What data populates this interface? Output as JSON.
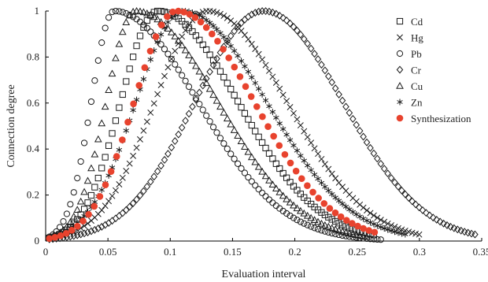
{
  "chart_data": {
    "type": "scatter",
    "title": "",
    "xlabel": "Evaluation interval",
    "ylabel": "Connection degree",
    "xlim": [
      0,
      0.35
    ],
    "ylim": [
      0,
      1
    ],
    "xticks": [
      "0",
      "0.05",
      "0.1",
      "0.15",
      "0.2",
      "0.25",
      "0.3",
      "0.35"
    ],
    "yticks": [
      "0",
      "0.2",
      "0.4",
      "0.6",
      "0.8",
      "1"
    ],
    "grid": false,
    "legend_position": "right",
    "colors": {
      "black": "#1a1a1a",
      "synthesization": "#e8432e"
    },
    "series": [
      {
        "name": "Cd",
        "marker": "square",
        "color": "#1a1a1a",
        "peak": 0.09,
        "left_width": 0.042,
        "right_width": 0.091,
        "end": 0.265,
        "x": [
          0.003,
          0.013,
          0.023,
          0.033,
          0.043,
          0.053,
          0.063,
          0.073,
          0.083,
          0.09,
          0.1,
          0.11,
          0.12,
          0.13,
          0.14,
          0.15,
          0.16,
          0.17,
          0.18,
          0.19,
          0.2,
          0.21,
          0.22,
          0.23,
          0.24,
          0.25,
          0.26
        ],
        "y": [
          0.02,
          0.08,
          0.22,
          0.45,
          0.7,
          0.89,
          0.98,
          1,
          1,
          1,
          0.99,
          0.97,
          0.93,
          0.87,
          0.8,
          0.72,
          0.63,
          0.54,
          0.45,
          0.36,
          0.28,
          0.21,
          0.15,
          0.1,
          0.06,
          0.04,
          0.03
        ]
      },
      {
        "name": "Hg",
        "marker": "x",
        "color": "#1a1a1a",
        "peak": 0.13,
        "left_width": 0.06,
        "right_width": 0.09,
        "end": 0.3,
        "x": [
          0.005,
          0.015,
          0.025,
          0.035,
          0.045,
          0.055,
          0.065,
          0.075,
          0.085,
          0.095,
          0.105,
          0.115,
          0.125,
          0.13,
          0.14,
          0.15,
          0.16,
          0.17,
          0.18,
          0.19,
          0.2,
          0.21,
          0.22,
          0.24,
          0.26,
          0.28,
          0.3
        ],
        "y": [
          0.01,
          0.04,
          0.1,
          0.2,
          0.34,
          0.5,
          0.65,
          0.78,
          0.88,
          0.95,
          0.99,
          1,
          1,
          1,
          0.99,
          0.96,
          0.91,
          0.84,
          0.76,
          0.67,
          0.57,
          0.47,
          0.38,
          0.23,
          0.12,
          0.05,
          0.02
        ]
      },
      {
        "name": "Pb",
        "marker": "circle",
        "color": "#1a1a1a",
        "peak": 0.055,
        "left_width": 0.026,
        "right_width": 0.095,
        "end": 0.27,
        "x": [
          0.002,
          0.01,
          0.02,
          0.03,
          0.04,
          0.05,
          0.055,
          0.065,
          0.075,
          0.085,
          0.095,
          0.105,
          0.115,
          0.125,
          0.135,
          0.145,
          0.155,
          0.165,
          0.175,
          0.185,
          0.195,
          0.205,
          0.215,
          0.225,
          0.235,
          0.245,
          0.255,
          0.27
        ],
        "y": [
          0.02,
          0.12,
          0.38,
          0.68,
          0.9,
          0.99,
          1,
          0.98,
          0.93,
          0.86,
          0.78,
          0.69,
          0.6,
          0.51,
          0.42,
          0.35,
          0.28,
          0.22,
          0.17,
          0.13,
          0.1,
          0.08,
          0.06,
          0.05,
          0.04,
          0.03,
          0.03,
          0.02
        ]
      },
      {
        "name": "Cr",
        "marker": "diamond",
        "color": "#1a1a1a",
        "peak": 0.175,
        "left_width": 0.078,
        "right_width": 0.09,
        "end": 0.345,
        "x": [
          0.01,
          0.025,
          0.04,
          0.055,
          0.07,
          0.085,
          0.1,
          0.115,
          0.13,
          0.145,
          0.16,
          0.175,
          0.19,
          0.205,
          0.22,
          0.235,
          0.25,
          0.265,
          0.28,
          0.295,
          0.31,
          0.325,
          0.345
        ],
        "y": [
          0.01,
          0.03,
          0.06,
          0.12,
          0.21,
          0.33,
          0.47,
          0.62,
          0.77,
          0.89,
          0.97,
          1,
          0.98,
          0.91,
          0.81,
          0.69,
          0.56,
          0.43,
          0.32,
          0.22,
          0.14,
          0.09,
          0.06
        ]
      },
      {
        "name": "Cu",
        "marker": "triangle",
        "color": "#1a1a1a",
        "peak": 0.072,
        "left_width": 0.033,
        "right_width": 0.093,
        "end": 0.26,
        "x": [
          0.003,
          0.013,
          0.023,
          0.033,
          0.043,
          0.053,
          0.063,
          0.072,
          0.082,
          0.092,
          0.102,
          0.112,
          0.122,
          0.132,
          0.142,
          0.152,
          0.162,
          0.172,
          0.182,
          0.192,
          0.202,
          0.212,
          0.222,
          0.232,
          0.242,
          0.26
        ],
        "y": [
          0.02,
          0.1,
          0.28,
          0.53,
          0.77,
          0.93,
          0.99,
          1,
          0.99,
          0.95,
          0.89,
          0.81,
          0.72,
          0.63,
          0.54,
          0.45,
          0.37,
          0.3,
          0.24,
          0.19,
          0.14,
          0.11,
          0.08,
          0.06,
          0.05,
          0.04
        ]
      },
      {
        "name": "Zn",
        "marker": "star",
        "color": "#1a1a1a",
        "peak": 0.11,
        "left_width": 0.053,
        "right_width": 0.095,
        "end": 0.29,
        "x": [
          0.005,
          0.015,
          0.025,
          0.035,
          0.045,
          0.055,
          0.065,
          0.075,
          0.085,
          0.095,
          0.11,
          0.12,
          0.13,
          0.14,
          0.15,
          0.16,
          0.17,
          0.18,
          0.19,
          0.2,
          0.21,
          0.22,
          0.23,
          0.24,
          0.25,
          0.26,
          0.27,
          0.29
        ],
        "y": [
          0.01,
          0.05,
          0.13,
          0.26,
          0.43,
          0.61,
          0.77,
          0.89,
          0.96,
          0.99,
          1,
          0.99,
          0.96,
          0.92,
          0.86,
          0.79,
          0.71,
          0.63,
          0.54,
          0.46,
          0.38,
          0.3,
          0.23,
          0.17,
          0.12,
          0.08,
          0.05,
          0.02
        ]
      },
      {
        "name": "Synthesization",
        "marker": "filled-circle",
        "color": "#e8432e",
        "peak": 0.105,
        "left_width": 0.048,
        "right_width": 0.088,
        "end": 0.265,
        "x": [
          0.003,
          0.01,
          0.02,
          0.028,
          0.036,
          0.044,
          0.052,
          0.06,
          0.068,
          0.076,
          0.084,
          0.092,
          0.1,
          0.108,
          0.116,
          0.124,
          0.132,
          0.14,
          0.148,
          0.156,
          0.164,
          0.172,
          0.18,
          0.188,
          0.196,
          0.205,
          0.215,
          0.225,
          0.24,
          0.265
        ],
        "y": [
          0.02,
          0.07,
          0.16,
          0.3,
          0.47,
          0.65,
          0.8,
          0.9,
          0.96,
          0.99,
          1,
          1,
          1,
          1,
          0.99,
          0.97,
          0.94,
          0.9,
          0.85,
          0.79,
          0.72,
          0.65,
          0.58,
          0.51,
          0.44,
          0.36,
          0.29,
          0.22,
          0.15,
          0.07
        ]
      }
    ]
  }
}
